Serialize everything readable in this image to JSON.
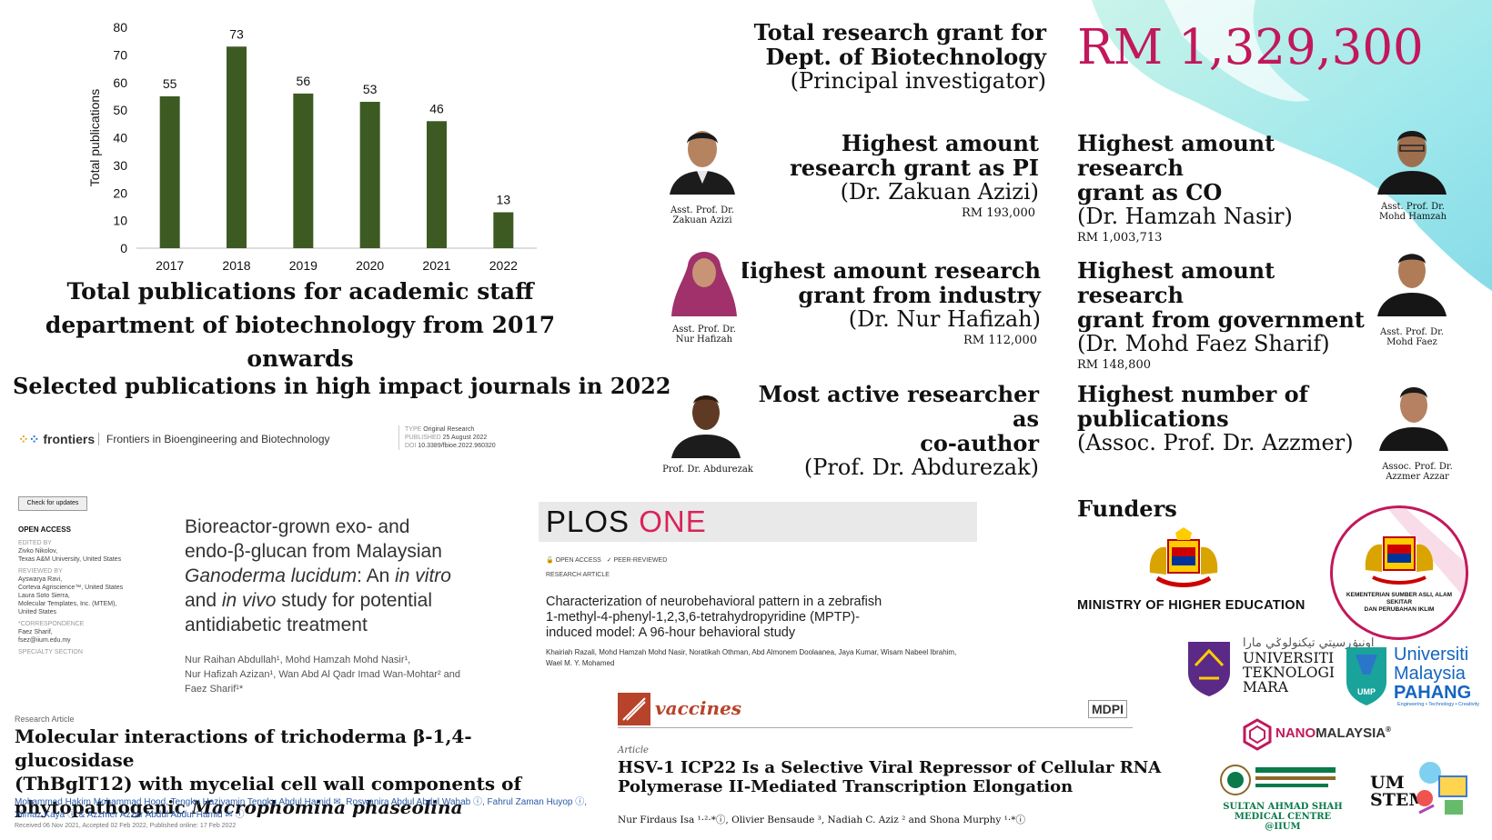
{
  "chart_data": {
    "type": "bar",
    "categories": [
      "2017",
      "2018",
      "2019",
      "2020",
      "2021",
      "2022"
    ],
    "values": [
      55,
      73,
      56,
      53,
      46,
      13
    ],
    "ylabel": "Total publications",
    "ylim": [
      0,
      80
    ],
    "yticks": [
      0,
      10,
      20,
      30,
      40,
      50,
      60,
      70,
      80
    ],
    "bar_color": "#3d5a22",
    "grid": false
  },
  "chart_caption": "Total publications for academic staff department of biotechnology from 2017 onwards",
  "selected_heading": "Selected publications in high impact journals in 2022",
  "grant": {
    "label_line1": "Total research grant  for",
    "label_line2": "Dept. of Biotechnology",
    "label_line3": "(Principal investigator)",
    "amount": "RM 1,329,300",
    "amount_color": "#c2185b"
  },
  "awards": {
    "pi": {
      "h1": "Highest amount",
      "h2": "research grant as PI",
      "name": "(Dr. Zakuan Azizi)",
      "amount": "RM 193,000",
      "photo_caption1": "Asst. Prof. Dr.",
      "photo_caption2": "Zakuan Azizi"
    },
    "co": {
      "h1": "Highest amount research",
      "h2": "grant as CO",
      "name": "(Dr. Hamzah Nasir)",
      "amount": "RM 1,003,713",
      "photo_caption1": "Asst. Prof. Dr.",
      "photo_caption2": "Mohd Hamzah"
    },
    "industry": {
      "h1": "Highest amount research",
      "h2": "grant from industry",
      "name": "(Dr. Nur Hafizah)",
      "amount": "RM 112,000",
      "photo_caption1": "Asst. Prof. Dr.",
      "photo_caption2": "Nur Hafizah"
    },
    "government": {
      "h1": "Highest amount research",
      "h2": "grant from government",
      "name": "(Dr. Mohd Faez Sharif)",
      "amount": "RM 148,800",
      "photo_caption1": "Asst. Prof. Dr.",
      "photo_caption2": "Mohd Faez"
    },
    "coauthor": {
      "h1": "Most active researcher as",
      "h2": "co-author",
      "name": "(Prof. Dr. Abdurezak)",
      "photo_caption1": "Prof. Dr. Abdurezak"
    },
    "publications": {
      "h1": "Highest number of",
      "h2": "publications",
      "name": "(Assoc. Prof. Dr. Azzmer)",
      "photo_caption1": "Assoc. Prof. Dr.",
      "photo_caption2": "Azzmer Azzar"
    }
  },
  "frontiers": {
    "brand": "frontiers",
    "journal": "Frontiers in Bioengineering and Biotechnology",
    "meta_type_label": "TYPE",
    "meta_type": "Original Research",
    "meta_pub_label": "PUBLISHED",
    "meta_pub": "25 August 2022",
    "meta_doi_label": "DOI",
    "meta_doi": "10.3389/fbioe.2022.960320",
    "check_updates": "Check for updates",
    "open_access": "OPEN ACCESS",
    "edited_by_label": "EDITED BY",
    "edited_by": "Zivko Nikolov,",
    "edited_aff": "Texas A&M University, United States",
    "reviewed_label": "REVIEWED BY",
    "reviewer1": "Ayswarya Ravi,",
    "reviewer1_aff": "Corteva Agriscience™, United States",
    "reviewer2": "Laura Soto Sierra,",
    "reviewer2_aff": "Molecular Templates, Inc. (MTEM),",
    "reviewer2_aff2": "United States",
    "corr_label": "*CORRESPONDENCE",
    "corr_name": "Faez Sharif,",
    "corr_email": "fsez@iium.edu.my",
    "specialty": "SPECIALTY SECTION",
    "title_l1": "Bioreactor-grown exo- and",
    "title_l2": "endo-β-glucan from Malaysian",
    "title_l3a": "Ganoderma lucidum",
    "title_l3b": ": An ",
    "title_l3c": "in vitro",
    "title_l4a": "and ",
    "title_l4b": "in vivo",
    "title_l4c": " study for potential",
    "title_l5": "antidiabetic treatment",
    "authors_l1": "Nur Raihan Abdullah¹, Mohd Hamzah Mohd Nasir¹,",
    "authors_l2": "Nur Hafizah Azizan¹, Wan Abd Al Qadr Imad Wan-Mohtar² and",
    "authors_l3": "Faez Sharif¹*"
  },
  "paper2": {
    "label": "Research Article",
    "title_l1": "Molecular interactions of trichoderma β-1,4-glucosidase",
    "title_l2": "(ThBglT12) with mycelial cell wall components of",
    "title_l3a": "phytopathogenic ",
    "title_l3b": "Macrophomina phaseolina",
    "authors_l1": "Mohammad Hakim Mohammad Hood, Tengku Haziyamin Tengku Abdul Hamid ✉, Roswanira Abdul Abdul Wahab ⓘ, Fahrul Zaman Huyop ⓘ,",
    "authors_l2": "Yilmaz Kaya ⓘ & Azzmer Azzar Abdul Abdul Hamid ✉ ⓘ",
    "dates": "Received 06 Nov 2021, Accepted 02 Feb 2022, Published online: 17 Feb 2022"
  },
  "plos": {
    "brand1": "PLOS ",
    "brand2": "ONE",
    "brand2_color": "#d9245a",
    "open_access": "OPEN ACCESS",
    "peer": "PEER-REVIEWED",
    "article_type": "RESEARCH ARTICLE",
    "title_l1": "Characterization of neurobehavioral pattern in a zebrafish",
    "title_l2": "1-methyl-4-phenyl-1,2,3,6-tetrahydropyridine (MPTP)-",
    "title_l3": "induced model: A 96-hour behavioral study",
    "authors_l1": "Khairiah Razali, Mohd Hamzah Mohd Nasir, Noratikah Othman, Abd Almonem Doolaanea, Jaya Kumar, Wisam Nabeel Ibrahim,",
    "authors_l2": "Wael M. Y. Mohamed"
  },
  "vaccines": {
    "brand": "vaccines",
    "publisher": "MDPI",
    "label": "Article",
    "title_l1": "HSV-1 ICP22 Is a Selective Viral Repressor of Cellular RNA",
    "title_l2": "Polymerase II-Mediated Transcription Elongation",
    "authors": "Nur Firdaus Isa ¹·²·*ⓘ, Olivier Bensaude ³, Nadiah C. Aziz ² and Shona Murphy ¹·*ⓘ"
  },
  "funders": {
    "heading": "Funders",
    "mohe": "MINISTRY OF HIGHER EDUCATION",
    "kasa_l1": "KEMENTERIAN SUMBER ASLI, ALAM SEKITAR",
    "kasa_l2": "DAN PERUBAHAN IKLIM",
    "uitm_l1": "UNIVERSITI",
    "uitm_l2": "TEKNOLOGI",
    "uitm_l3": "MARA",
    "ump_l1": "Universiti",
    "ump_l2": "Malaysia",
    "ump_l3": "PAHANG",
    "ump_tag": "Engineering • Technology • Creativity",
    "ump_badge": "UMP",
    "nano": "NANOMALAYSIA",
    "sasmec_l1": "SULTAN AHMAD SHAH",
    "sasmec_l2": "MEDICAL CENTRE @IIUM",
    "umstem_l1": "UM",
    "umstem_l2": "STEM"
  }
}
